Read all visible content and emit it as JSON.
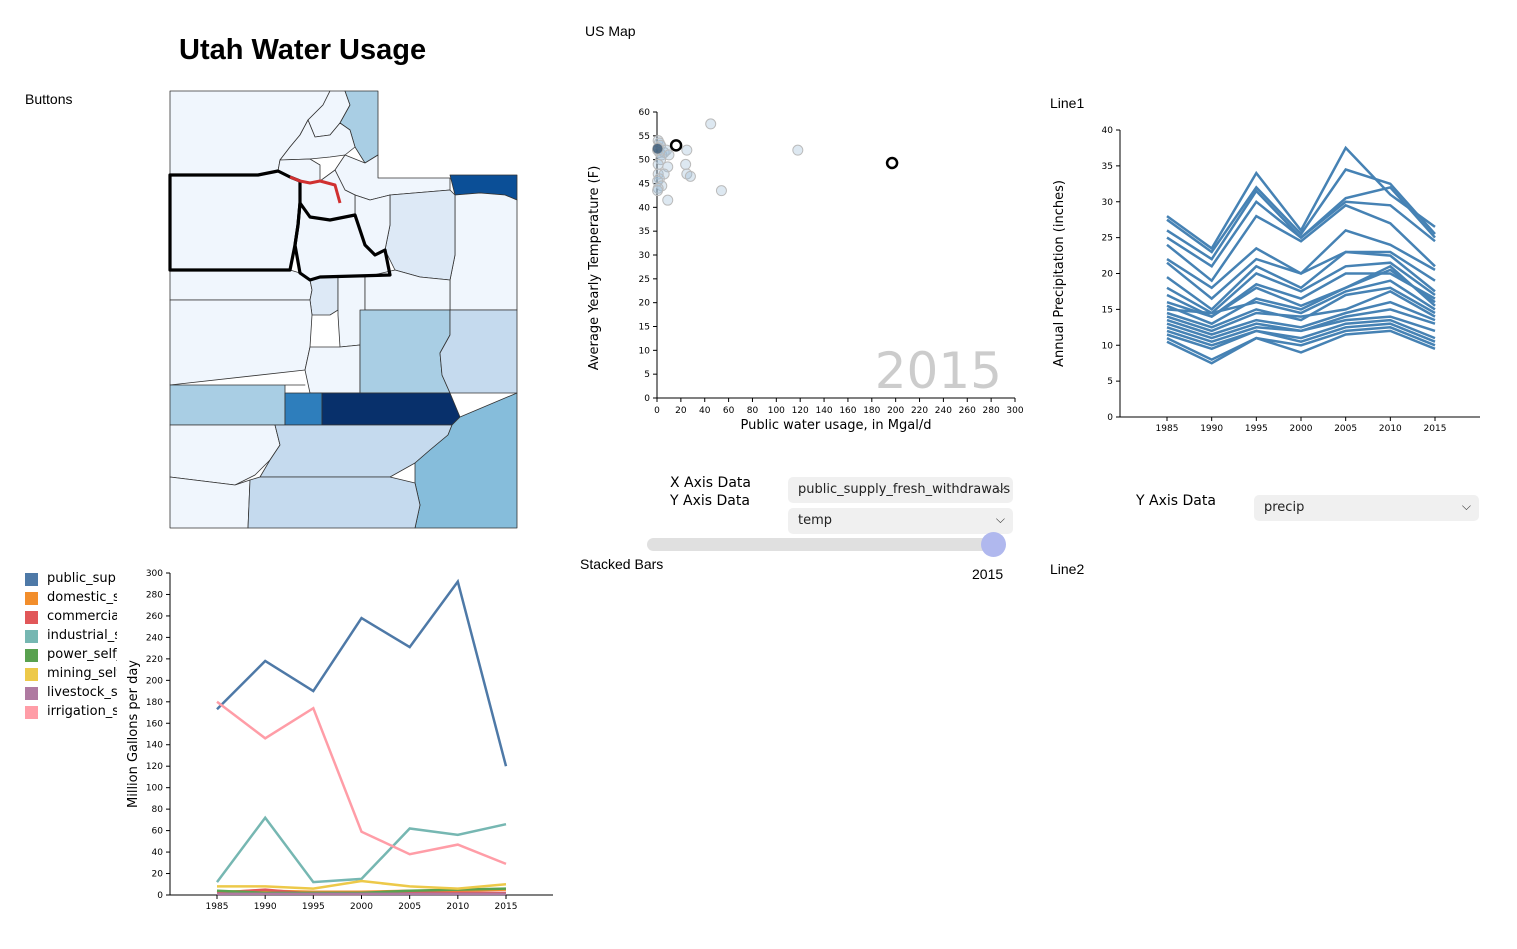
{
  "page": {
    "title": "Utah Water Usage",
    "sections": {
      "buttons": "Buttons",
      "us_map": "US Map",
      "line1": "Line1",
      "stacked_bars": "Stacked Bars",
      "line2": "Line2"
    }
  },
  "controls": {
    "x_axis_label": "X Axis Data",
    "y_axis_label": "Y Axis Data",
    "x_select_value": "public_supply_fresh_withdrawals",
    "y_select_value": "temp",
    "line_y_axis_label": "Y Axis Data",
    "line_y_select_value": "precip",
    "year_slider": {
      "value": 2015,
      "min": 1985,
      "max": 2015,
      "label": "2015"
    }
  },
  "map": {
    "colors": [
      "#f0f6fd",
      "#dde9f6",
      "#c5daee",
      "#a9cee4",
      "#86bddb",
      "#2e7ebc",
      "#0b4f97",
      "#08306b"
    ],
    "selected_outline_color": "#000000",
    "highlight_color": "#d03030"
  },
  "legend": {
    "items": [
      {
        "label": "public_supply_fresh_withdrawals",
        "color": "#4e79a7"
      },
      {
        "label": "domestic_self_supplied",
        "color": "#f28e2c"
      },
      {
        "label": "commercial_self_supplied",
        "color": "#e15759"
      },
      {
        "label": "industrial_self_supplied",
        "color": "#76b7b2"
      },
      {
        "label": "power_self_supplied",
        "color": "#59a14f"
      },
      {
        "label": "mining_self_supplied",
        "color": "#edc949"
      },
      {
        "label": "livestock_self_supplied",
        "color": "#af7aa1"
      },
      {
        "label": "irrigation_self_supplied",
        "color": "#ff9da7"
      }
    ]
  },
  "chart_data": [
    {
      "id": "scatter",
      "type": "scatter",
      "xlabel": "Public water usage, in Mgal/d",
      "ylabel": "Average Yearly Temperature (F)",
      "xlim": [
        0,
        300
      ],
      "ylim": [
        0,
        60
      ],
      "xticks": [
        0,
        20,
        40,
        60,
        80,
        100,
        120,
        140,
        160,
        180,
        200,
        220,
        240,
        260,
        280,
        300
      ],
      "yticks": [
        0,
        5,
        10,
        15,
        20,
        25,
        30,
        35,
        40,
        45,
        50,
        55,
        60
      ],
      "watermark": "2015",
      "points": [
        {
          "x": 1,
          "y": 54
        },
        {
          "x": 2,
          "y": 53.5
        },
        {
          "x": 3,
          "y": 53
        },
        {
          "x": 1,
          "y": 52.5
        },
        {
          "x": 0.5,
          "y": 52
        },
        {
          "x": 2,
          "y": 51.5
        },
        {
          "x": 4,
          "y": 51
        },
        {
          "x": 6,
          "y": 51.5
        },
        {
          "x": 8,
          "y": 52
        },
        {
          "x": 10,
          "y": 51
        },
        {
          "x": 25,
          "y": 52
        },
        {
          "x": 3,
          "y": 50
        },
        {
          "x": 1,
          "y": 49
        },
        {
          "x": 9,
          "y": 48.5
        },
        {
          "x": 24,
          "y": 49
        },
        {
          "x": 1,
          "y": 47
        },
        {
          "x": 6,
          "y": 47
        },
        {
          "x": 25,
          "y": 47
        },
        {
          "x": 28,
          "y": 46.5
        },
        {
          "x": 2,
          "y": 46
        },
        {
          "x": 0.5,
          "y": 45.5
        },
        {
          "x": 4,
          "y": 44.5
        },
        {
          "x": 1,
          "y": 44
        },
        {
          "x": 0.5,
          "y": 43.5
        },
        {
          "x": 54,
          "y": 43.5
        },
        {
          "x": 9,
          "y": 41.5
        },
        {
          "x": 45,
          "y": 57.5
        },
        {
          "x": 118,
          "y": 52
        },
        {
          "x": 0.5,
          "y": 52.3,
          "dark": true
        },
        {
          "x": 16,
          "y": 53,
          "selected": true
        },
        {
          "x": 197,
          "y": 49.3,
          "selected": true
        }
      ]
    },
    {
      "id": "line1",
      "type": "line",
      "ylabel": "Annual Precipitation (inches)",
      "xlabel": "",
      "x": [
        1985,
        1990,
        1995,
        2000,
        2005,
        2010,
        2015
      ],
      "ylim": [
        0,
        40
      ],
      "yticks": [
        0,
        5,
        10,
        15,
        20,
        25,
        30,
        35,
        40
      ],
      "series_color": "#4682b4",
      "series": [
        {
          "values": [
            28,
            23.5,
            34,
            26,
            37.5,
            31,
            26.5
          ]
        },
        {
          "values": [
            27.5,
            23,
            32,
            25.5,
            34.5,
            32.5,
            25.5
          ]
        },
        {
          "values": [
            26,
            22,
            31.5,
            25,
            30.5,
            32,
            25
          ]
        },
        {
          "values": [
            25,
            21,
            30,
            25,
            30,
            29.5,
            24.5
          ]
        },
        {
          "values": [
            24,
            19,
            28,
            24.5,
            29.5,
            27,
            21
          ]
        },
        {
          "values": [
            22,
            18,
            23.5,
            20,
            26,
            24,
            20.5
          ]
        },
        {
          "values": [
            21.5,
            16.5,
            22,
            20,
            23,
            23,
            19
          ]
        },
        {
          "values": [
            19.5,
            15,
            21,
            18,
            23,
            22.5,
            17.5
          ]
        },
        {
          "values": [
            18,
            14.5,
            20,
            17.5,
            21,
            21.5,
            17
          ]
        },
        {
          "values": [
            17,
            14,
            18.5,
            16.5,
            20,
            20,
            16.5
          ]
        },
        {
          "values": [
            16,
            14,
            18,
            15.5,
            18,
            20.5,
            16
          ]
        },
        {
          "values": [
            15.5,
            13,
            16.5,
            15,
            18,
            21,
            15.5
          ]
        },
        {
          "values": [
            15,
            14.5,
            16,
            14.5,
            17.5,
            19,
            15
          ]
        },
        {
          "values": [
            14.5,
            12.5,
            15,
            13.5,
            17,
            18,
            14.5
          ]
        },
        {
          "values": [
            14,
            12,
            14.5,
            14,
            15,
            17.5,
            14
          ]
        },
        {
          "values": [
            13.5,
            11.5,
            13.5,
            12.5,
            14.5,
            16,
            13.5
          ]
        },
        {
          "values": [
            13,
            11,
            13,
            12,
            14,
            15,
            13
          ]
        },
        {
          "values": [
            12.5,
            10.5,
            12.5,
            12,
            13.5,
            14,
            12
          ]
        },
        {
          "values": [
            12,
            10,
            12,
            11,
            13,
            13.5,
            11
          ]
        },
        {
          "values": [
            11.5,
            9.5,
            12,
            10.5,
            12.5,
            13,
            10.5
          ]
        },
        {
          "values": [
            11,
            8,
            11,
            10,
            12,
            12.5,
            10
          ]
        },
        {
          "values": [
            10.5,
            7.5,
            11,
            9,
            11.5,
            12,
            9.5
          ]
        }
      ]
    },
    {
      "id": "line2",
      "type": "line",
      "ylabel": "Million Gallons per day",
      "xlabel": "",
      "x": [
        1985,
        1990,
        1995,
        2000,
        2005,
        2010,
        2015
      ],
      "ylim": [
        0,
        300
      ],
      "yticks": [
        0,
        20,
        40,
        60,
        80,
        100,
        120,
        140,
        160,
        180,
        200,
        220,
        240,
        260,
        280,
        300
      ],
      "series": [
        {
          "name": "public_supply_fresh_withdrawals",
          "color": "#4e79a7",
          "values": [
            173,
            218,
            190,
            258,
            231,
            292,
            120
          ]
        },
        {
          "name": "domestic_self_supplied",
          "color": "#f28e2c",
          "values": [
            3,
            4,
            3,
            3,
            4,
            4,
            5
          ]
        },
        {
          "name": "commercial_self_supplied",
          "color": "#e15759",
          "values": [
            2,
            5,
            1,
            1,
            2,
            2,
            2
          ]
        },
        {
          "name": "industrial_self_supplied",
          "color": "#76b7b2",
          "values": [
            12,
            72,
            12,
            15,
            62,
            56,
            66
          ]
        },
        {
          "name": "power_self_supplied",
          "color": "#59a14f",
          "values": [
            4,
            2,
            2,
            2,
            4,
            5,
            6
          ]
        },
        {
          "name": "mining_self_supplied",
          "color": "#edc949",
          "values": [
            8,
            8,
            6,
            13,
            8,
            6,
            10
          ]
        },
        {
          "name": "livestock_self_supplied",
          "color": "#af7aa1",
          "values": [
            1,
            1,
            1,
            1,
            1,
            1,
            1
          ]
        },
        {
          "name": "irrigation_self_supplied",
          "color": "#ff9da7",
          "values": [
            180,
            146,
            174,
            59,
            38,
            47,
            29
          ]
        }
      ]
    }
  ]
}
